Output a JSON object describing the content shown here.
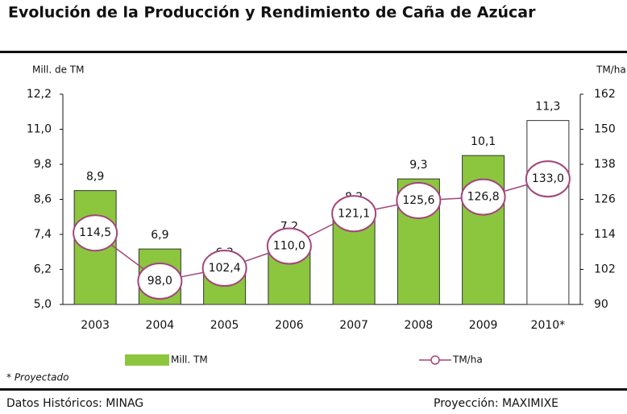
{
  "chart_data": {
    "type": "bar",
    "title": "Evolución de la Producción y Rendimiento de Caña de Azúcar",
    "y_label": "Mill. de TM",
    "y2_label": "TM/ha",
    "categories": [
      "2003",
      "2004",
      "2005",
      "2006",
      "2007",
      "2008",
      "2009",
      "2010*"
    ],
    "series": [
      {
        "name": "Mill. TM",
        "type": "bar",
        "color": "#8cc63f",
        "colors": [
          "#8cc63f",
          "#8cc63f",
          "#8cc63f",
          "#8cc63f",
          "#8cc63f",
          "#8cc63f",
          "#8cc63f",
          "#ffffff"
        ],
        "values": [
          8.9,
          6.9,
          6.3,
          7.2,
          8.2,
          9.3,
          10.1,
          11.3
        ],
        "value_labels": [
          "8,9",
          "6,9",
          "6,3",
          "7,2",
          "8,2",
          "9,3",
          "10,1",
          "11,3"
        ]
      },
      {
        "name": "TM/ha",
        "type": "line",
        "axis": "y2",
        "color": "#a3467a",
        "values": [
          114.5,
          98.0,
          102.4,
          110.0,
          121.1,
          125.6,
          126.8,
          133.0
        ],
        "value_labels": [
          "114,5",
          "98,0",
          "102,4",
          "110,0",
          "121,1",
          "125,6",
          "126,8",
          "133,0"
        ]
      }
    ],
    "ylim": [
      5.0,
      12.2
    ],
    "yticks": [
      {
        "value": 5.0,
        "label": "5,0"
      },
      {
        "value": 6.2,
        "label": "6,2"
      },
      {
        "value": 7.4,
        "label": "7,4"
      },
      {
        "value": 8.6,
        "label": "8,6"
      },
      {
        "value": 9.8,
        "label": "9,8"
      },
      {
        "value": 11.0,
        "label": "11,0"
      },
      {
        "value": 12.2,
        "label": "12,2"
      }
    ],
    "y2lim": [
      90,
      162
    ],
    "y2ticks": [
      90,
      102,
      114,
      126,
      138,
      150,
      162
    ],
    "footnote": "* Proyectado",
    "source_left": "Datos Históricos: MINAG",
    "source_right": "Proyección: MAXIMIXE"
  }
}
